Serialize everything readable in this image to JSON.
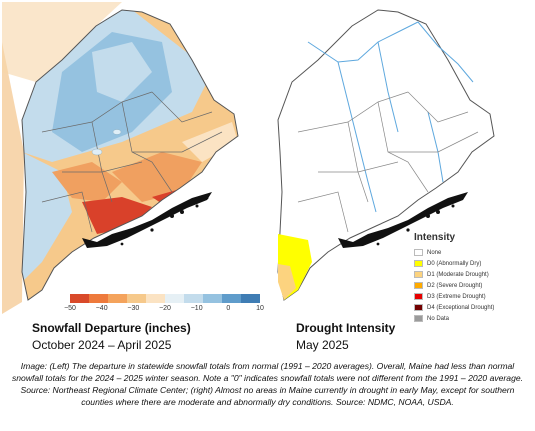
{
  "left_panel": {
    "title": "Snowfall Departure (inches)",
    "subtitle": "October 2024 – April 2025",
    "colorbar": {
      "colors": [
        "#d94a2a",
        "#ee7a3c",
        "#f4a35c",
        "#f6c98b",
        "#fbe3c3",
        "#e6f0f5",
        "#c3dcec",
        "#95c2e0",
        "#5f9ccb",
        "#3f7db4"
      ],
      "ticks": [
        "−50",
        "−40",
        "−30",
        "−20",
        "−10",
        "0",
        "10"
      ]
    },
    "region_colors": {
      "orange_light": "#f6c98b",
      "orange": "#f0a060",
      "red": "#d9412a",
      "blue_light": "#c3dcec",
      "blue": "#95c2e0",
      "pale": "#fbe3c3"
    }
  },
  "right_panel": {
    "title": "Drought Intensity",
    "subtitle": "May 2025",
    "legend_title": "Intensity",
    "legend": [
      {
        "label": "None",
        "color": "#ffffff"
      },
      {
        "label": "D0 (Abnormally Dry)",
        "color": "#ffff00"
      },
      {
        "label": "D1 (Moderate Drought)",
        "color": "#fcd37f"
      },
      {
        "label": "D2 (Severe Drought)",
        "color": "#ffaa00"
      },
      {
        "label": "D3 (Extreme Drought)",
        "color": "#e60000"
      },
      {
        "label": "D4 (Exceptional Drought)",
        "color": "#730000"
      },
      {
        "label": "No Data",
        "color": "#9b9b9b"
      }
    ]
  },
  "caption": "Image: (Left) The departure in statewide snowfall totals from normal (1991 – 2020 averages). Overall, Maine had less than normal snowfall totals for the 2024 – 2025 winter season. Note a \"0\" indicates snowfall totals were not different from the 1991 – 2020 average. Source: Northeast Regional Climate Center; (right) Almost no areas in Maine currently in drought in early May, except for southern counties where there are moderate and abnormally dry conditions. Source: NDMC, NOAA, USDA."
}
